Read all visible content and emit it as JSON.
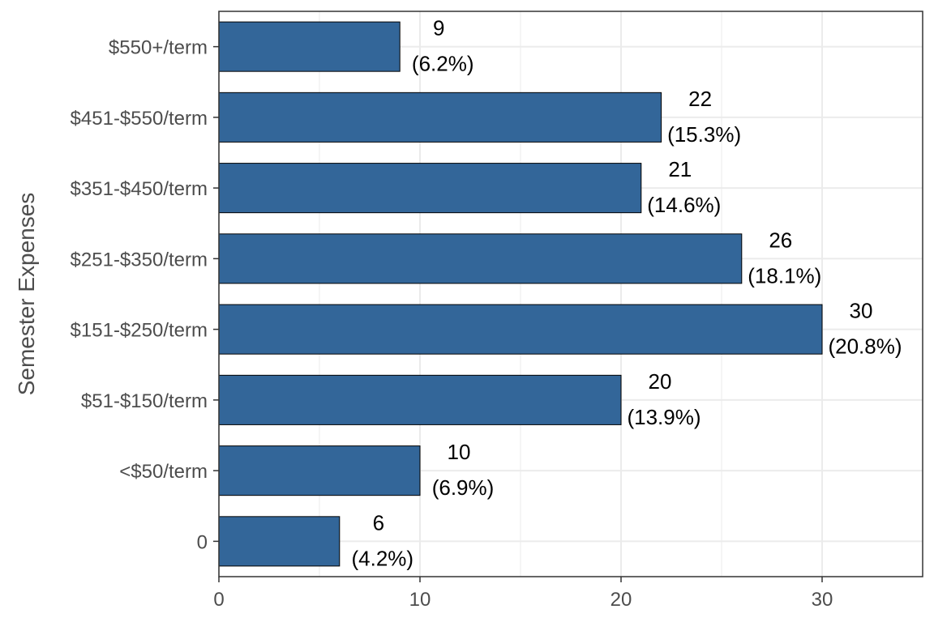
{
  "chart_data": {
    "type": "bar",
    "orientation": "horizontal",
    "categories": [
      "0",
      "<$50/term",
      "$51-$150/term",
      "$151-$250/term",
      "$251-$350/term",
      "$351-$450/term",
      "$451-$550/term",
      "$550+/term"
    ],
    "values": [
      6,
      10,
      20,
      30,
      26,
      21,
      22,
      9
    ],
    "percent_labels": [
      "(4.2%)",
      "(6.9%)",
      "(13.9%)",
      "(20.8%)",
      "(18.1%)",
      "(14.6%)",
      "(15.3%)",
      "(6.2%)"
    ],
    "title": "",
    "xlabel": "",
    "ylabel": "Semester Expenses",
    "xlim": [
      0,
      35
    ],
    "x_ticks": [
      0,
      10,
      20,
      30
    ],
    "grid": true,
    "legend": "none",
    "colors": {
      "bar": "#336699",
      "bar_outline": "#000000",
      "grid": "#ebebeb",
      "panel_border": "#333333",
      "tick_text": "#4d4d4d",
      "label_text": "#000000"
    }
  }
}
